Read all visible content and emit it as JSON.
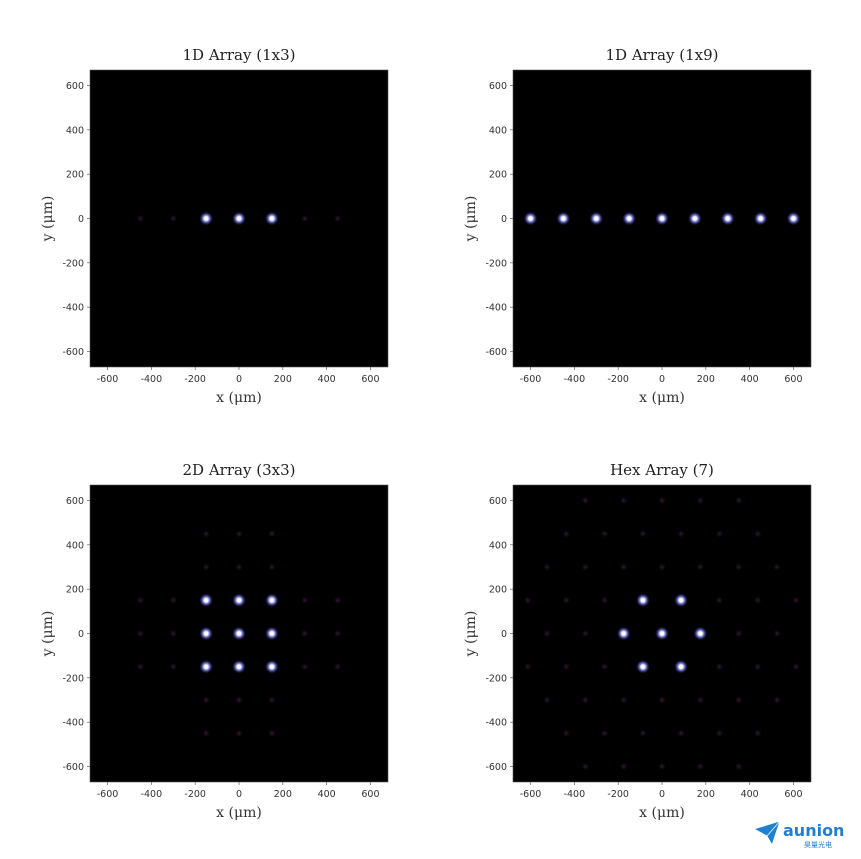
{
  "chart_data": [
    {
      "type": "scatter",
      "title": "1D Array (1x3)",
      "xlabel": "x (μm)",
      "ylabel": "y (μm)",
      "xlim": [
        -680,
        680
      ],
      "ylim": [
        -670,
        670
      ],
      "xticks": [
        -600,
        -400,
        -200,
        0,
        200,
        400,
        600
      ],
      "yticks": [
        600,
        400,
        200,
        0,
        -200,
        -400,
        -600
      ],
      "grid": false,
      "background": "#000000",
      "spots": [
        [
          -150,
          0
        ],
        [
          0,
          0
        ],
        [
          150,
          0
        ]
      ],
      "faint_spots": [
        [
          -450,
          0
        ],
        [
          -300,
          0
        ],
        [
          300,
          0
        ],
        [
          450,
          0
        ]
      ]
    },
    {
      "type": "scatter",
      "title": "1D Array (1x9)",
      "xlabel": "x (μm)",
      "ylabel": "y (μm)",
      "xlim": [
        -680,
        680
      ],
      "ylim": [
        -670,
        670
      ],
      "xticks": [
        -600,
        -400,
        -200,
        0,
        200,
        400,
        600
      ],
      "yticks": [
        600,
        400,
        200,
        0,
        -200,
        -400,
        -600
      ],
      "grid": false,
      "background": "#000000",
      "spots": [
        [
          -600,
          0
        ],
        [
          -450,
          0
        ],
        [
          -300,
          0
        ],
        [
          -150,
          0
        ],
        [
          0,
          0
        ],
        [
          150,
          0
        ],
        [
          300,
          0
        ],
        [
          450,
          0
        ],
        [
          600,
          0
        ]
      ],
      "faint_spots": []
    },
    {
      "type": "scatter",
      "title": "2D Array (3x3)",
      "xlabel": "x (μm)",
      "ylabel": "y (μm)",
      "xlim": [
        -680,
        680
      ],
      "ylim": [
        -670,
        670
      ],
      "xticks": [
        -600,
        -400,
        -200,
        0,
        200,
        400,
        600
      ],
      "yticks": [
        600,
        400,
        200,
        0,
        -200,
        -400,
        -600
      ],
      "grid": false,
      "background": "#000000",
      "spots": [
        [
          -150,
          150
        ],
        [
          0,
          150
        ],
        [
          150,
          150
        ],
        [
          -150,
          0
        ],
        [
          0,
          0
        ],
        [
          150,
          0
        ],
        [
          -150,
          -150
        ],
        [
          0,
          -150
        ],
        [
          150,
          -150
        ]
      ],
      "faint_spots": [
        [
          -150,
          450
        ],
        [
          0,
          450
        ],
        [
          150,
          450
        ],
        [
          -150,
          300
        ],
        [
          0,
          300
        ],
        [
          150,
          300
        ],
        [
          -150,
          -300
        ],
        [
          0,
          -300
        ],
        [
          150,
          -300
        ],
        [
          -150,
          -450
        ],
        [
          0,
          -450
        ],
        [
          150,
          -450
        ],
        [
          -450,
          150
        ],
        [
          -300,
          150
        ],
        [
          300,
          150
        ],
        [
          450,
          150
        ],
        [
          -450,
          0
        ],
        [
          -300,
          0
        ],
        [
          300,
          0
        ],
        [
          450,
          0
        ],
        [
          -450,
          -150
        ],
        [
          -300,
          -150
        ],
        [
          300,
          -150
        ],
        [
          450,
          -150
        ]
      ]
    },
    {
      "type": "scatter",
      "title": "Hex Array (7)",
      "xlabel": "x (μm)",
      "ylabel": "y (μm)",
      "xlim": [
        -680,
        680
      ],
      "ylim": [
        -670,
        670
      ],
      "xticks": [
        -600,
        -400,
        -200,
        0,
        200,
        400,
        600
      ],
      "yticks": [
        600,
        400,
        200,
        0,
        -200,
        -400,
        -600
      ],
      "grid": false,
      "background": "#000000",
      "spots": [
        [
          -87,
          150
        ],
        [
          87,
          150
        ],
        [
          -175,
          0
        ],
        [
          0,
          0
        ],
        [
          175,
          0
        ],
        [
          -87,
          -150
        ],
        [
          87,
          -150
        ]
      ],
      "faint_spots": [
        [
          -175,
          300
        ],
        [
          0,
          300
        ],
        [
          175,
          300
        ],
        [
          -262,
          150
        ],
        [
          262,
          150
        ],
        [
          -350,
          0
        ],
        [
          350,
          0
        ],
        [
          -262,
          -150
        ],
        [
          262,
          -150
        ],
        [
          -175,
          -300
        ],
        [
          0,
          -300
        ],
        [
          175,
          -300
        ],
        [
          -87,
          450
        ],
        [
          87,
          450
        ],
        [
          -87,
          -450
        ],
        [
          87,
          -450
        ],
        [
          -437,
          150
        ],
        [
          437,
          150
        ],
        [
          -437,
          -150
        ],
        [
          437,
          -150
        ],
        [
          -525,
          0
        ],
        [
          525,
          0
        ],
        [
          -350,
          300
        ],
        [
          350,
          300
        ],
        [
          -350,
          -300
        ],
        [
          350,
          -300
        ],
        [
          -262,
          450
        ],
        [
          262,
          450
        ],
        [
          -262,
          -450
        ],
        [
          262,
          -450
        ],
        [
          -612,
          150
        ],
        [
          612,
          150
        ],
        [
          -612,
          -150
        ],
        [
          612,
          -150
        ],
        [
          -525,
          300
        ],
        [
          525,
          300
        ],
        [
          -525,
          -300
        ],
        [
          525,
          -300
        ],
        [
          -437,
          450
        ],
        [
          437,
          450
        ],
        [
          -437,
          -450
        ],
        [
          437,
          -450
        ],
        [
          -175,
          600
        ],
        [
          0,
          600
        ],
        [
          175,
          600
        ],
        [
          -175,
          -600
        ],
        [
          0,
          -600
        ],
        [
          175,
          -600
        ],
        [
          -350,
          600
        ],
        [
          350,
          600
        ],
        [
          -350,
          -600
        ],
        [
          350,
          -600
        ]
      ]
    }
  ],
  "logo": {
    "word": "aunion",
    "sub": "昊量光电",
    "color": "#1f7fd0"
  }
}
